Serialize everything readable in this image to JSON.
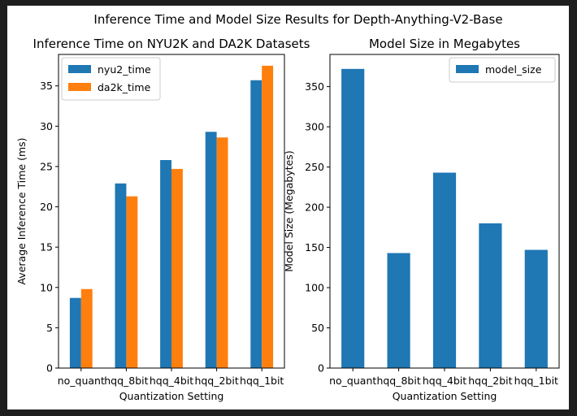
{
  "figure": {
    "suptitle": "Inference Time and Model Size Results for Depth-Anything-V2-Base",
    "background": "#ffffff",
    "frame_color": "#1e1e1e"
  },
  "chart_data": [
    {
      "type": "bar",
      "title": "Inference Time on NYU2K and DA2K Datasets",
      "xlabel": "Quantization Setting",
      "ylabel": "Average Inference Time (ms)",
      "categories": [
        "no_quant",
        "hqq_8bit",
        "hqq_4bit",
        "hqq_2bit",
        "hqq_1bit"
      ],
      "series": [
        {
          "name": "nyu2_time",
          "color": "#1f77b4",
          "values": [
            8.7,
            22.9,
            25.8,
            29.3,
            35.7
          ]
        },
        {
          "name": "da2k_time",
          "color": "#ff7f0e",
          "values": [
            9.8,
            21.3,
            24.7,
            28.6,
            37.5
          ]
        }
      ],
      "ylim": [
        0,
        38.9
      ],
      "yticks": [
        0,
        5,
        10,
        15,
        20,
        25,
        30,
        35
      ],
      "legend": "top-left",
      "grid": false
    },
    {
      "type": "bar",
      "title": "Model Size in Megabytes",
      "xlabel": "Quantization Setting",
      "ylabel": "Model Size (Megabytes)",
      "categories": [
        "no_quant",
        "hqq_8bit",
        "hqq_4bit",
        "hqq_2bit",
        "hqq_1bit"
      ],
      "series": [
        {
          "name": "model_size",
          "color": "#1f77b4",
          "values": [
            372,
            143,
            243,
            180,
            147
          ]
        }
      ],
      "ylim": [
        0,
        390
      ],
      "yticks": [
        0,
        50,
        100,
        150,
        200,
        250,
        300,
        350
      ],
      "legend": "top-right",
      "grid": false
    }
  ]
}
